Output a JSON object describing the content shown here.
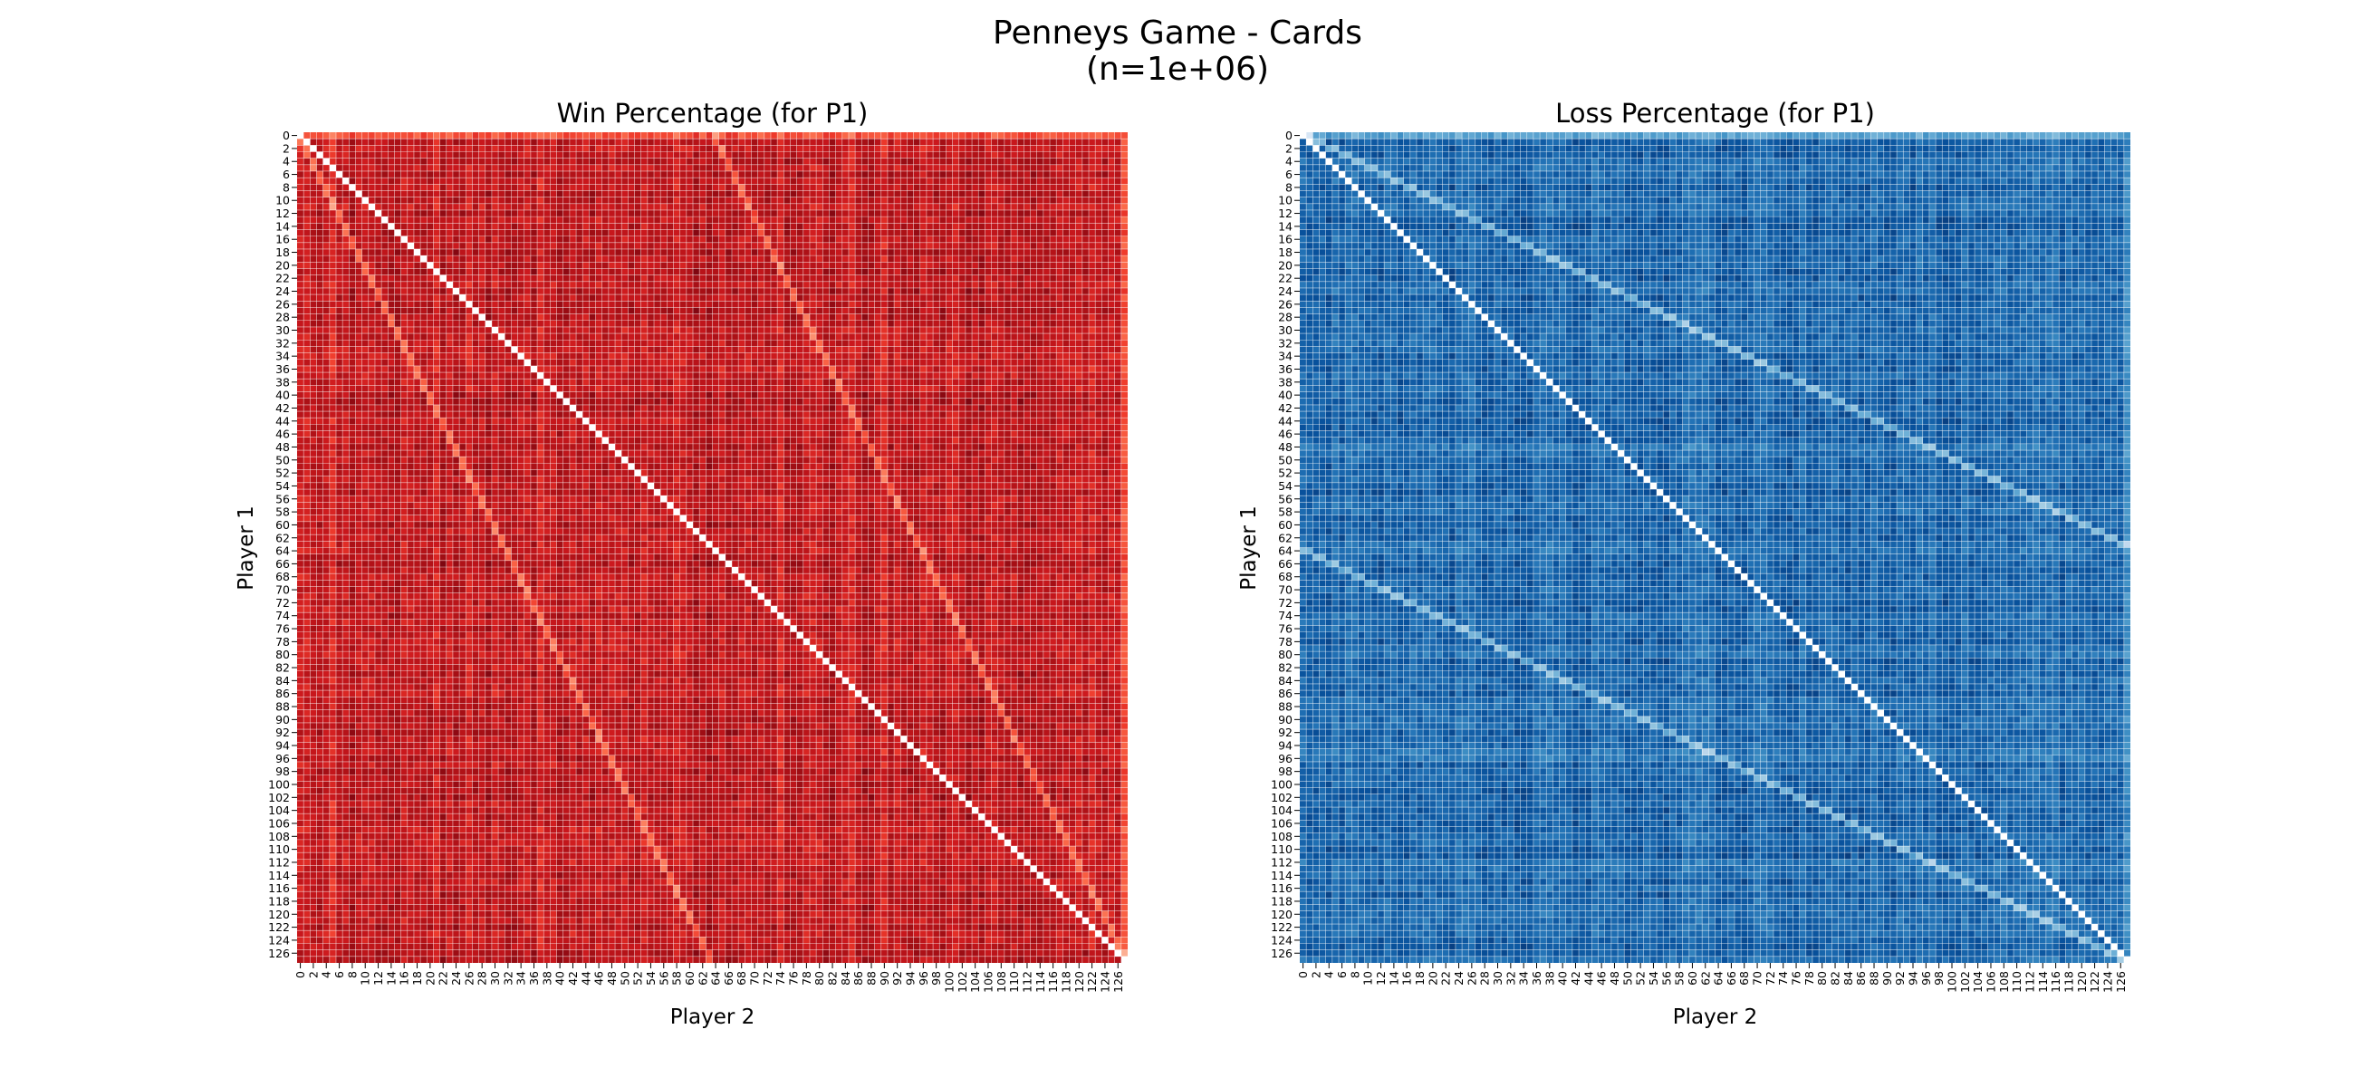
{
  "figure": {
    "title_line1": "Penneys Game - Cards",
    "title_line2": "(n=1e+06)"
  },
  "chart_data": [
    {
      "type": "heatmap",
      "title": "Win Percentage (for P1)",
      "xlabel": "Player 2",
      "ylabel": "Player 1",
      "rows": 128,
      "cols": 128,
      "x_tick_labels": [
        "0",
        "2",
        "4",
        "6",
        "8",
        "10",
        "12",
        "14",
        "16",
        "18",
        "20",
        "22",
        "24",
        "26",
        "28",
        "30",
        "32",
        "34",
        "36",
        "38",
        "40",
        "42",
        "44",
        "46",
        "48",
        "50",
        "52",
        "54",
        "56",
        "58",
        "60",
        "62",
        "64",
        "66",
        "68",
        "70",
        "72",
        "74",
        "76",
        "78",
        "80",
        "82",
        "84",
        "86",
        "88",
        "90",
        "92",
        "94",
        "96",
        "98",
        "100",
        "102",
        "104",
        "106",
        "108",
        "110",
        "112",
        "114",
        "116",
        "118",
        "120",
        "122",
        "124",
        "126"
      ],
      "y_tick_labels": [
        "0",
        "2",
        "4",
        "6",
        "8",
        "10",
        "12",
        "14",
        "16",
        "18",
        "20",
        "22",
        "24",
        "26",
        "28",
        "30",
        "32",
        "34",
        "36",
        "38",
        "40",
        "42",
        "44",
        "46",
        "48",
        "50",
        "52",
        "54",
        "56",
        "58",
        "60",
        "62",
        "64",
        "66",
        "68",
        "70",
        "72",
        "74",
        "76",
        "78",
        "80",
        "82",
        "84",
        "86",
        "88",
        "90",
        "92",
        "94",
        "96",
        "98",
        "100",
        "102",
        "104",
        "106",
        "108",
        "110",
        "112",
        "114",
        "116",
        "118",
        "120",
        "122",
        "124",
        "126"
      ],
      "colormap": "Reds",
      "colorbar": false,
      "value_range": [
        0,
        1
      ],
      "diagonal_value": 0,
      "typical_value": 0.8,
      "notes": "Dense 128x128 matrix; values not individually labeled. Diagonal (i==j) is empty/white; lighter off-diagonal bands at j = i/2 and j = i/2 + 64."
    },
    {
      "type": "heatmap",
      "title": "Loss Percentage (for P1)",
      "xlabel": "Player 2",
      "ylabel": "Player 1",
      "rows": 128,
      "cols": 128,
      "x_tick_labels": [
        "0",
        "2",
        "4",
        "6",
        "8",
        "10",
        "12",
        "14",
        "16",
        "18",
        "20",
        "22",
        "24",
        "26",
        "28",
        "30",
        "32",
        "34",
        "36",
        "38",
        "40",
        "42",
        "44",
        "46",
        "48",
        "50",
        "52",
        "54",
        "56",
        "58",
        "60",
        "62",
        "64",
        "66",
        "68",
        "70",
        "72",
        "74",
        "76",
        "78",
        "80",
        "82",
        "84",
        "86",
        "88",
        "90",
        "92",
        "94",
        "96",
        "98",
        "100",
        "102",
        "104",
        "106",
        "108",
        "110",
        "112",
        "114",
        "116",
        "118",
        "120",
        "122",
        "124",
        "126"
      ],
      "y_tick_labels": [
        "0",
        "2",
        "4",
        "6",
        "8",
        "10",
        "12",
        "14",
        "16",
        "18",
        "20",
        "22",
        "24",
        "26",
        "28",
        "30",
        "32",
        "34",
        "36",
        "38",
        "40",
        "42",
        "44",
        "46",
        "48",
        "50",
        "52",
        "54",
        "56",
        "58",
        "60",
        "62",
        "64",
        "66",
        "68",
        "70",
        "72",
        "74",
        "76",
        "78",
        "80",
        "82",
        "84",
        "86",
        "88",
        "90",
        "92",
        "94",
        "96",
        "98",
        "100",
        "102",
        "104",
        "106",
        "108",
        "110",
        "112",
        "114",
        "116",
        "118",
        "120",
        "122",
        "124",
        "126"
      ],
      "colormap": "Blues",
      "colorbar": false,
      "value_range": [
        0,
        1
      ],
      "diagonal_value": 0,
      "typical_value": 0.8,
      "notes": "Dense 128x128 matrix; values not individually labeled. Diagonal (i==j) is empty/white; lighter bands at j = 2i and j = 2i - 128."
    }
  ]
}
